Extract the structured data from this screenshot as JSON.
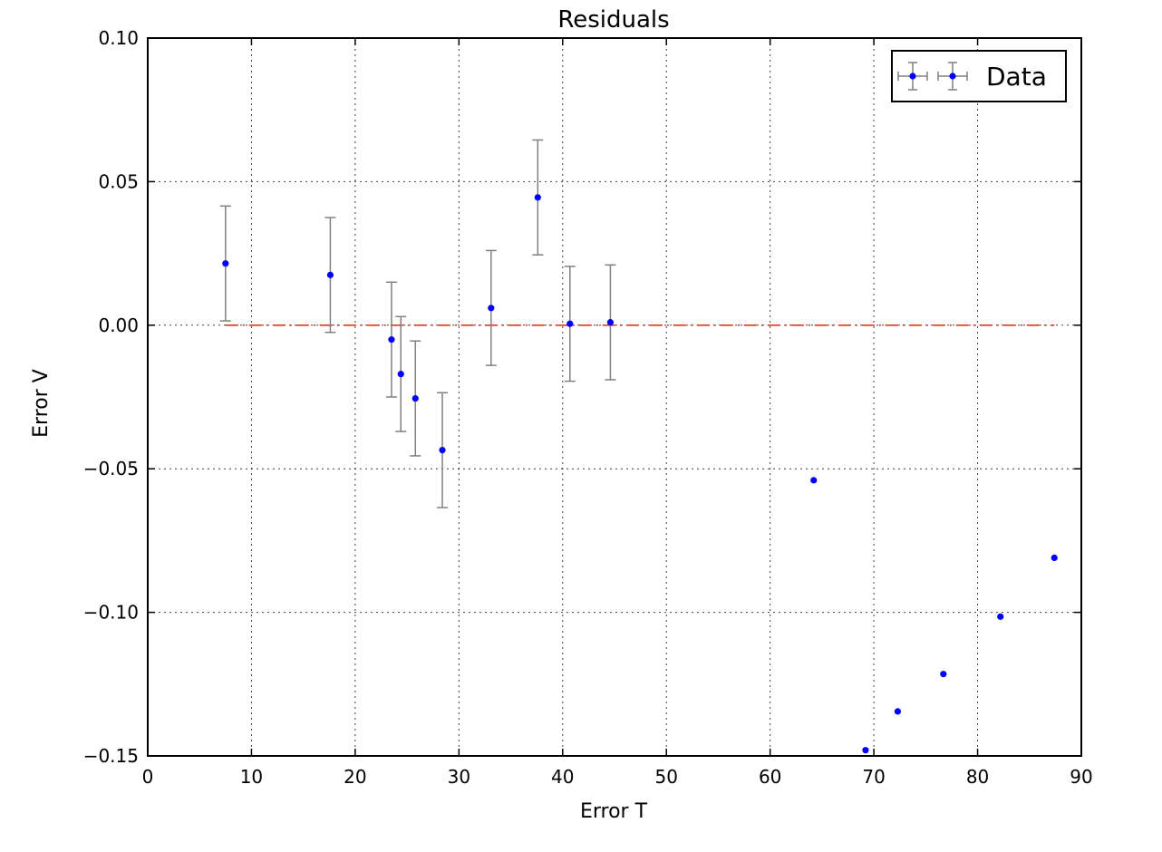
{
  "chart_data": {
    "type": "scatter",
    "title": "Residuals",
    "xlabel": "Error T",
    "ylabel": "Error V",
    "xlim": [
      0,
      90
    ],
    "ylim": [
      -0.15,
      0.1
    ],
    "xticks": [
      0,
      10,
      20,
      30,
      40,
      50,
      60,
      70,
      80,
      90
    ],
    "yticks": [
      0.1,
      0.05,
      0.0,
      -0.05,
      -0.1,
      -0.15
    ],
    "xtick_labels": [
      "0",
      "10",
      "20",
      "30",
      "40",
      "50",
      "60",
      "70",
      "80",
      "90"
    ],
    "ytick_labels": [
      "0.10",
      "0.05",
      "0.00",
      "−0.05",
      "−0.10",
      "−0.15"
    ],
    "grid": true,
    "legend_position": "top-right",
    "series": [
      {
        "name": "Data",
        "color": "#0000ff",
        "errorbar_color": "#808080",
        "points": [
          {
            "x": 7.5,
            "y": 0.0215,
            "yerr": 0.02
          },
          {
            "x": 17.6,
            "y": 0.0175,
            "yerr": 0.02
          },
          {
            "x": 23.5,
            "y": -0.005,
            "yerr": 0.02
          },
          {
            "x": 24.4,
            "y": -0.017,
            "yerr": 0.02
          },
          {
            "x": 25.8,
            "y": -0.0255,
            "yerr": 0.02
          },
          {
            "x": 28.4,
            "y": -0.0435,
            "yerr": 0.02
          },
          {
            "x": 33.1,
            "y": 0.006,
            "yerr": 0.02
          },
          {
            "x": 37.6,
            "y": 0.0445,
            "yerr": 0.02
          },
          {
            "x": 40.7,
            "y": 0.0005,
            "yerr": 0.02
          },
          {
            "x": 44.6,
            "y": 0.001,
            "yerr": 0.02
          },
          {
            "x": 64.2,
            "y": -0.054,
            "yerr": 0
          },
          {
            "x": 69.2,
            "y": -0.148,
            "yerr": 0
          },
          {
            "x": 72.3,
            "y": -0.1345,
            "yerr": 0
          },
          {
            "x": 76.7,
            "y": -0.1215,
            "yerr": 0
          },
          {
            "x": 82.2,
            "y": -0.1015,
            "yerr": 0
          },
          {
            "x": 87.4,
            "y": -0.081,
            "yerr": 0
          }
        ]
      }
    ],
    "reference_line": {
      "y": 0,
      "x_start": 7.5,
      "x_end": 87.4,
      "color": "#e8341c",
      "style": "dash-dot"
    }
  }
}
